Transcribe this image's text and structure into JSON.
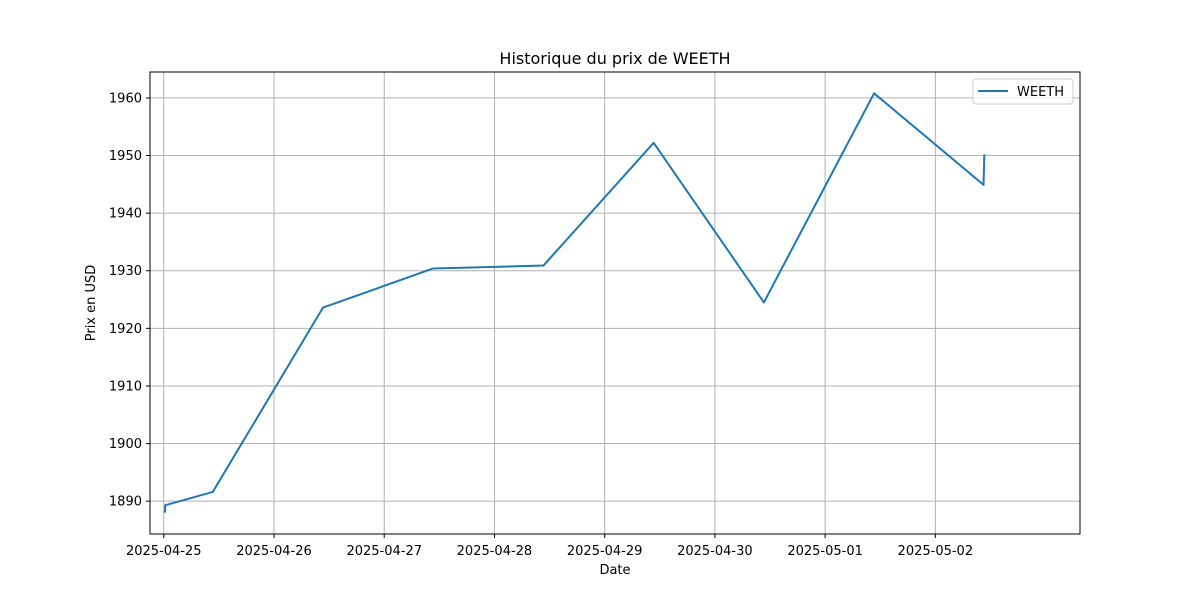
{
  "chart_data": {
    "type": "line",
    "title": "Historique du prix de WEETH",
    "xlabel": "Date",
    "ylabel": "Prix en USD",
    "x_ticks": [
      "2025-04-25",
      "2025-04-26",
      "2025-04-27",
      "2025-04-28",
      "2025-04-29",
      "2025-04-30",
      "2025-05-01",
      "2025-05-02"
    ],
    "y_ticks": [
      1890,
      1900,
      1910,
      1920,
      1930,
      1940,
      1950,
      1960
    ],
    "xlim": [
      "2025-04-24T21:00",
      "2025-05-03T07:30"
    ],
    "ylim": [
      1884.3,
      1964.5
    ],
    "grid": true,
    "legend": "top-right",
    "series": [
      {
        "name": "WEETH",
        "color": "#1f77b4",
        "x": [
          "2025-04-25T00:15",
          "2025-04-25T00:20",
          "2025-04-25T10:40",
          "2025-04-26T10:40",
          "2025-04-27T10:40",
          "2025-04-28T10:40",
          "2025-04-29T10:40",
          "2025-04-30T10:40",
          "2025-05-01T10:40",
          "2025-05-02T10:30",
          "2025-05-02T10:40"
        ],
        "values": [
          1888.0,
          1889.3,
          1891.6,
          1923.6,
          1930.4,
          1930.9,
          1952.2,
          1924.5,
          1960.8,
          1944.9,
          1950.2
        ]
      }
    ]
  }
}
